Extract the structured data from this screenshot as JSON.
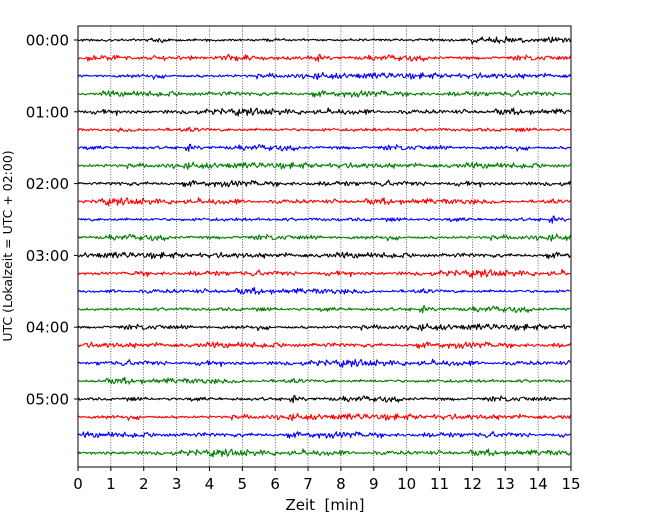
{
  "chart_data": {
    "type": "line",
    "title": "",
    "xlabel": "Zeit  [min]",
    "ylabel": "UTC (Lokalzeit = UTC + 02:00)",
    "xlim": [
      0,
      15
    ],
    "x_ticks": [
      "0",
      "1",
      "2",
      "3",
      "4",
      "5",
      "6",
      "7",
      "8",
      "9",
      "10",
      "11",
      "12",
      "13",
      "14",
      "15"
    ],
    "y_ticks": [
      "00:00",
      "01:00",
      "02:00",
      "03:00",
      "04:00",
      "05:00"
    ],
    "grid": "vertical dotted lines at each minute",
    "trace_interval_min": 15,
    "trace_colors": [
      "#000000",
      "#ff0000",
      "#0000ff",
      "#008000"
    ],
    "series": [
      {
        "start": "00:00",
        "color": "#000000"
      },
      {
        "start": "00:15",
        "color": "#ff0000"
      },
      {
        "start": "00:30",
        "color": "#0000ff"
      },
      {
        "start": "00:45",
        "color": "#008000"
      },
      {
        "start": "01:00",
        "color": "#000000"
      },
      {
        "start": "01:15",
        "color": "#ff0000"
      },
      {
        "start": "01:30",
        "color": "#0000ff"
      },
      {
        "start": "01:45",
        "color": "#008000"
      },
      {
        "start": "02:00",
        "color": "#000000"
      },
      {
        "start": "02:15",
        "color": "#ff0000"
      },
      {
        "start": "02:30",
        "color": "#0000ff"
      },
      {
        "start": "02:45",
        "color": "#008000"
      },
      {
        "start": "03:00",
        "color": "#000000"
      },
      {
        "start": "03:15",
        "color": "#ff0000"
      },
      {
        "start": "03:30",
        "color": "#0000ff"
      },
      {
        "start": "03:45",
        "color": "#008000"
      },
      {
        "start": "04:00",
        "color": "#000000"
      },
      {
        "start": "04:15",
        "color": "#ff0000"
      },
      {
        "start": "04:30",
        "color": "#0000ff"
      },
      {
        "start": "04:45",
        "color": "#008000"
      },
      {
        "start": "05:00",
        "color": "#000000"
      },
      {
        "start": "05:15",
        "color": "#ff0000"
      },
      {
        "start": "05:30",
        "color": "#0000ff"
      },
      {
        "start": "05:45",
        "color": "#008000"
      }
    ]
  }
}
